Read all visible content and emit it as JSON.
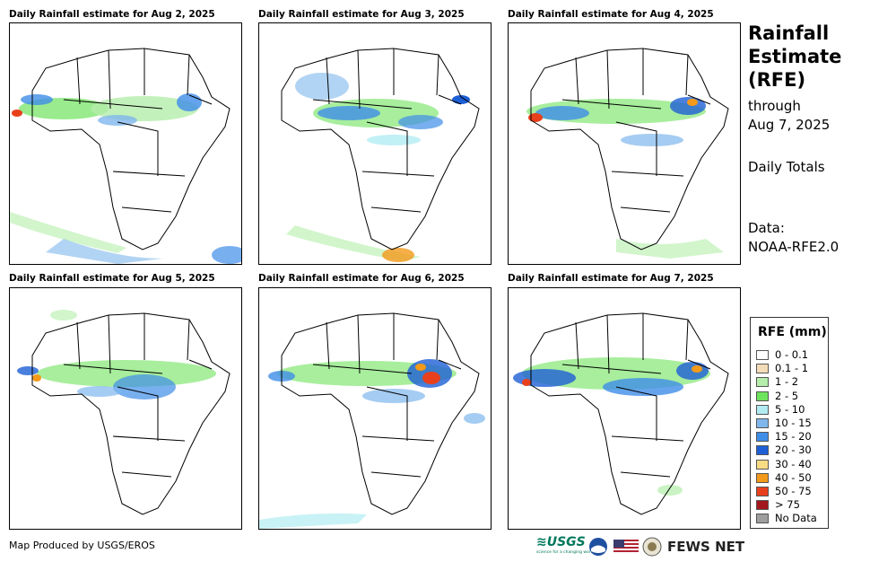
{
  "panels": [
    {
      "title": "Daily Rainfall estimate for Aug 2, 2025"
    },
    {
      "title": "Daily Rainfall estimate for Aug 3, 2025"
    },
    {
      "title": "Daily Rainfall estimate for Aug 4, 2025"
    },
    {
      "title": "Daily Rainfall estimate for Aug 5, 2025"
    },
    {
      "title": "Daily Rainfall estimate for Aug 6, 2025"
    },
    {
      "title": "Daily Rainfall estimate for Aug 7, 2025"
    }
  ],
  "side": {
    "title_line1": "Rainfall",
    "title_line2": "Estimate",
    "title_line3": "(RFE)",
    "through": "through",
    "through_date": "Aug 7, 2025",
    "daily_totals": "Daily Totals",
    "data_label": "Data:",
    "data_source": "NOAA-RFE2.0"
  },
  "legend": {
    "title": "RFE (mm)",
    "items": [
      {
        "label": "0 - 0.1",
        "color": "#ffffff"
      },
      {
        "label": "0.1 - 1",
        "color": "#f3dcb8"
      },
      {
        "label": "1 - 2",
        "color": "#b4eeaa"
      },
      {
        "label": "2 - 5",
        "color": "#6ee35c"
      },
      {
        "label": "5 - 10",
        "color": "#b1ecf2"
      },
      {
        "label": "10 - 15",
        "color": "#7fb7ec"
      },
      {
        "label": "15 - 20",
        "color": "#3e8de8"
      },
      {
        "label": "20 - 30",
        "color": "#1e5fd6"
      },
      {
        "label": "30 - 40",
        "color": "#f8dc85"
      },
      {
        "label": "40 - 50",
        "color": "#f39a1a"
      },
      {
        "label": "50 - 75",
        "color": "#e8401c"
      },
      {
        "label": "> 75",
        "color": "#a3181c"
      },
      {
        "label": "No Data",
        "color": "#9e9e9e"
      }
    ]
  },
  "footer": {
    "credit": "Map Produced by USGS/EROS",
    "usgs_logo": "≋USGS",
    "usgs_tagline": "science for a changing world",
    "fews_logo": "FEWS NET"
  }
}
